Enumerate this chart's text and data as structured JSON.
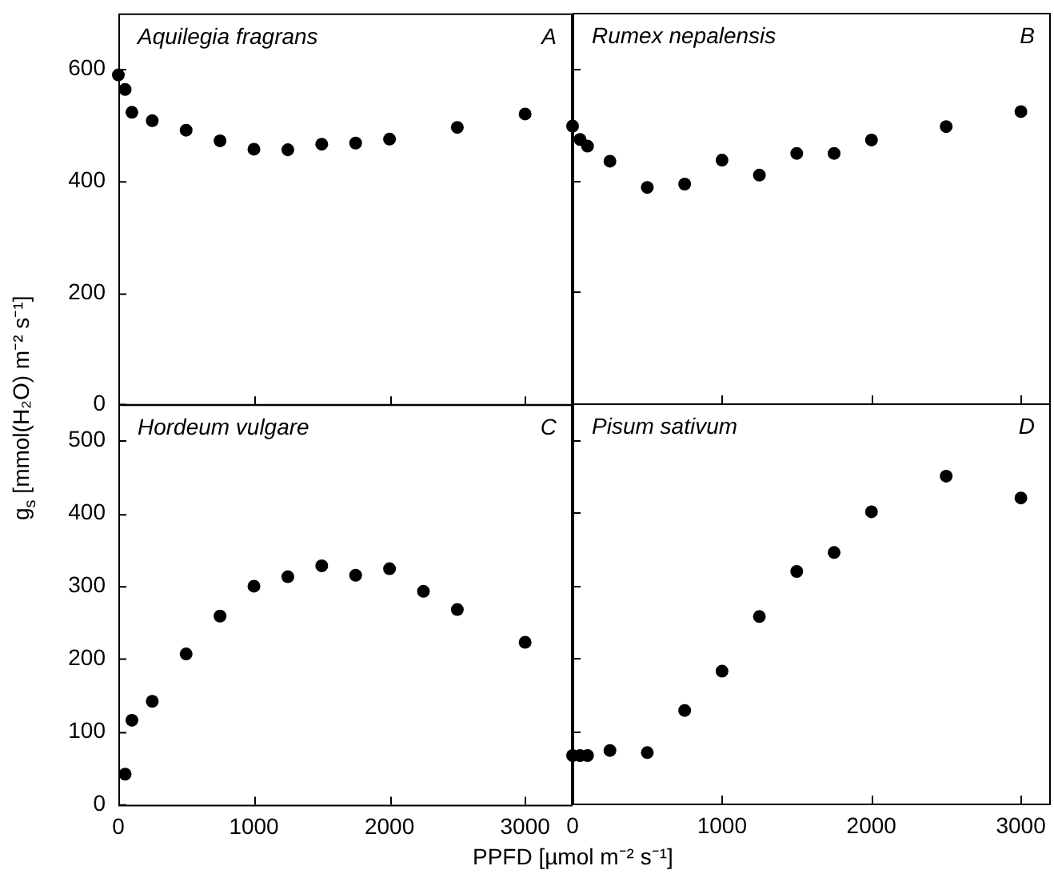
{
  "chart_data": [
    {
      "type": "scatter",
      "title": "Aquilegia fragrans",
      "annotations": [
        "A"
      ],
      "ylabel": "g$_{s}$ [mmol(H₂O) m⁻² s⁻¹]",
      "x": [
        0,
        50,
        100,
        250,
        500,
        750,
        1000,
        1250,
        1500,
        1750,
        2000,
        2500,
        3000
      ],
      "values": [
        590,
        564,
        523,
        508,
        491,
        472,
        457,
        456,
        466,
        468,
        475,
        496,
        520
      ],
      "color": "#000000",
      "marker": "circle",
      "xlim": [
        0,
        3350
      ],
      "xticks": [
        0,
        1000,
        2000,
        3000
      ],
      "ylim": [
        0,
        700
      ],
      "yticks": [
        0,
        200,
        400,
        600
      ],
      "tick_labels": "y"
    },
    {
      "type": "scatter",
      "title": "Rumex nepalensis",
      "annotations": [
        "B"
      ],
      "x": [
        0,
        50,
        100,
        250,
        500,
        750,
        1000,
        1250,
        1500,
        1750,
        2000,
        2500,
        3000
      ],
      "values": [
        497,
        473,
        461,
        434,
        387,
        393,
        436,
        409,
        448,
        448,
        472,
        496,
        523
      ],
      "color": "#000000",
      "marker": "circle",
      "xlim": [
        0,
        3200
      ],
      "xticks": [
        0,
        1000,
        2000,
        3000
      ],
      "ylim": [
        0,
        700
      ],
      "yticks": [
        0,
        200,
        400,
        600
      ],
      "tick_labels": false
    },
    {
      "type": "scatter",
      "title": "Hordeum vulgare",
      "annotations": [
        "C"
      ],
      "xlabel": "PPFD [µmol m⁻² s⁻¹]",
      "x": [
        50,
        100,
        250,
        500,
        750,
        1000,
        1250,
        1500,
        1750,
        2000,
        2250,
        2500,
        3000
      ],
      "values": [
        42,
        116,
        142,
        207,
        259,
        300,
        313,
        328,
        315,
        324,
        293,
        268,
        223
      ],
      "color": "#000000",
      "marker": "circle",
      "xlim": [
        0,
        3350
      ],
      "xticks": [
        0,
        1000,
        2000,
        3000
      ],
      "ylim": [
        0,
        550
      ],
      "yticks": [
        0,
        100,
        200,
        300,
        400,
        500
      ]
    },
    {
      "type": "scatter",
      "title": "Pisum sativum",
      "annotations": [
        "D"
      ],
      "x": [
        0,
        50,
        100,
        250,
        500,
        750,
        1000,
        1250,
        1500,
        1750,
        2000,
        2500,
        3000
      ],
      "values": [
        66,
        66,
        66,
        73,
        70,
        128,
        182,
        257,
        319,
        345,
        401,
        450,
        420
      ],
      "color": "#000000",
      "marker": "circle",
      "xlim": [
        0,
        3200
      ],
      "xticks": [
        0,
        1000,
        2000,
        3000
      ],
      "ylim": [
        0,
        550
      ],
      "yticks": [
        0,
        100,
        200,
        300,
        400,
        500
      ],
      "tick_labels": "x"
    }
  ]
}
